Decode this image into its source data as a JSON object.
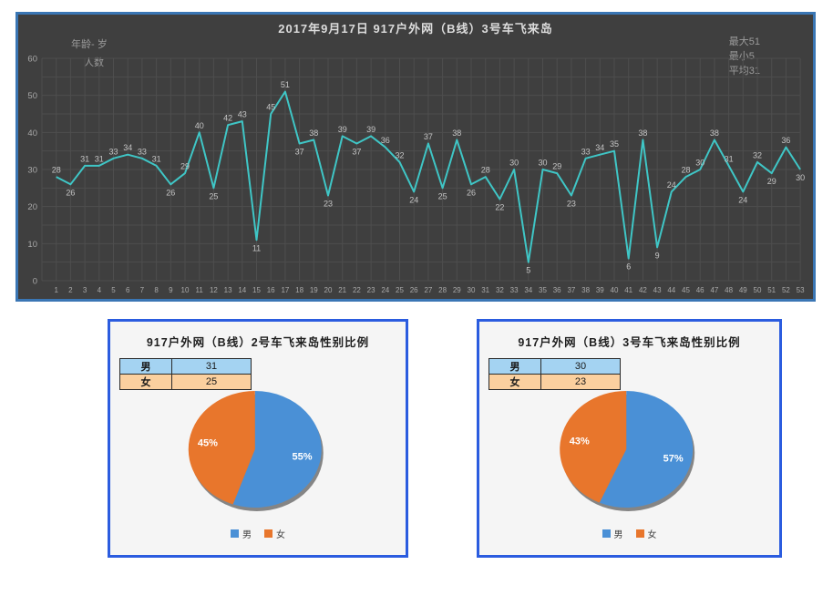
{
  "colors": {
    "male_blue": "#4a90d6",
    "female_orange": "#e8762c",
    "line_teal": "#3fc6c6",
    "panel_dark_bg": "#3f3f3f",
    "panel_dark_border": "#3a76b4",
    "pie_panel_border": "#2b5cdf",
    "grid_line": "#4e4e4e",
    "table_row_male_bg": "#a4d3f2",
    "table_row_female_bg": "#fbd09f"
  },
  "chart_data": [
    {
      "type": "line",
      "title": "2017年9月17日  917户外网（B线）3号车飞来岛",
      "ylabel_line1": "年龄- 岁",
      "ylabel_line2": "人数",
      "stats": [
        "最大51",
        "最小5",
        "平均31"
      ],
      "xlabel": "",
      "ylabel": "人数",
      "ylim": [
        0,
        60
      ],
      "ytick_step": 10,
      "grid": true,
      "x": [
        1,
        2,
        3,
        4,
        5,
        6,
        7,
        8,
        9,
        10,
        11,
        12,
        13,
        14,
        15,
        16,
        17,
        18,
        19,
        20,
        21,
        22,
        23,
        24,
        25,
        26,
        27,
        28,
        29,
        30,
        31,
        32,
        33,
        34,
        35,
        36,
        37,
        38,
        39,
        40,
        41,
        42,
        43,
        44,
        45,
        46,
        47,
        48,
        49,
        50,
        51,
        52,
        53
      ],
      "values": [
        28,
        26,
        31,
        31,
        33,
        34,
        33,
        31,
        26,
        29,
        40,
        25,
        42,
        43,
        11,
        45,
        51,
        37,
        38,
        23,
        39,
        37,
        39,
        36,
        32,
        24,
        37,
        25,
        38,
        26,
        28,
        22,
        30,
        5,
        30,
        29,
        23,
        33,
        34,
        35,
        6,
        38,
        9,
        24,
        28,
        30,
        38,
        31,
        24,
        32,
        29,
        36,
        30
      ]
    },
    {
      "type": "pie",
      "title": "917户外网（B线）2号车飞来岛性别比例",
      "table": {
        "rows": [
          {
            "label": "男",
            "value": "31"
          },
          {
            "label": "女",
            "value": "25"
          }
        ]
      },
      "slices": [
        {
          "name": "男",
          "value": 31,
          "pct_label": "55%",
          "color": "#4a90d6"
        },
        {
          "name": "女",
          "value": 25,
          "pct_label": "45%",
          "color": "#e8762c"
        }
      ],
      "legend_position": "bottom"
    },
    {
      "type": "pie",
      "title": "917户外网（B线）3号车飞来岛性别比例",
      "table": {
        "rows": [
          {
            "label": "男",
            "value": "30"
          },
          {
            "label": "女",
            "value": "23"
          }
        ]
      },
      "slices": [
        {
          "name": "男",
          "value": 30,
          "pct_label": "57%",
          "color": "#4a90d6"
        },
        {
          "name": "女",
          "value": 23,
          "pct_label": "43%",
          "color": "#e8762c"
        }
      ],
      "legend_position": "bottom"
    }
  ]
}
